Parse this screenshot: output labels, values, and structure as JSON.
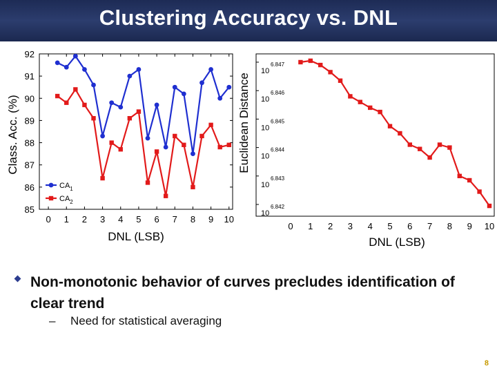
{
  "slide": {
    "title": "Clustering Accuracy vs. DNL",
    "bullet": "Non-monotonic behavior of curves precludes identification of clear trend",
    "sub_dash": "–",
    "sub_bullet": "Need for statistical averaging",
    "page_number": "8"
  },
  "chart_data": [
    {
      "type": "line",
      "xlabel": "DNL (LSB)",
      "ylabel": "Class. Acc. (%)",
      "xlim": [
        -0.5,
        10.2
      ],
      "ylim": [
        85,
        92
      ],
      "xticks": [
        0,
        1,
        2,
        3,
        4,
        5,
        6,
        7,
        8,
        9,
        10
      ],
      "yticks": [
        85,
        86,
        87,
        88,
        89,
        90,
        91,
        92
      ],
      "legend_position": "bottom-left",
      "grid": false,
      "x": [
        0.5,
        1,
        1.5,
        2,
        2.5,
        3,
        3.5,
        4,
        4.5,
        5,
        5.5,
        6,
        6.5,
        7,
        7.5,
        8,
        8.5,
        9,
        9.5,
        10
      ],
      "series": [
        {
          "name": "CA",
          "name_sub": "1",
          "color": "#1f2fd0",
          "marker": "circle",
          "values": [
            91.6,
            91.4,
            91.9,
            91.3,
            90.6,
            88.3,
            89.8,
            89.6,
            91.0,
            91.3,
            88.2,
            89.7,
            87.8,
            90.5,
            90.2,
            87.5,
            90.7,
            91.3,
            90.0,
            90.5
          ]
        },
        {
          "name": "CA",
          "name_sub": "2",
          "color": "#e21a1a",
          "marker": "square",
          "values": [
            90.1,
            89.8,
            90.4,
            89.7,
            89.1,
            86.4,
            88.0,
            87.7,
            89.1,
            89.4,
            86.2,
            87.6,
            85.6,
            88.3,
            87.9,
            86.0,
            88.3,
            88.8,
            87.8,
            87.9
          ]
        }
      ]
    },
    {
      "type": "line",
      "xlabel": "DNL (LSB)",
      "ylabel": "Euclidean Distance",
      "yscale": "log",
      "xlim": [
        0,
        10
      ],
      "ylim_exponent": [
        6.842,
        6.847
      ],
      "xticks": [
        0,
        1,
        2,
        3,
        4,
        5,
        6,
        7,
        8,
        9,
        10
      ],
      "ytick_base": "10",
      "ytick_exponents": [
        "6.847",
        "6.846",
        "6.845",
        "6.844",
        "6.843",
        "6.842"
      ],
      "grid": false,
      "x": [
        0.5,
        1,
        1.5,
        2,
        2.5,
        3,
        3.5,
        4,
        4.5,
        5,
        5.5,
        6,
        6.5,
        7,
        7.5,
        8,
        8.5,
        9,
        9.5,
        10
      ],
      "series": [
        {
          "color": "#e21a1a",
          "marker": "square",
          "values_exponent": [
            6.847,
            6.84705,
            6.8469,
            6.84665,
            6.84635,
            6.8458,
            6.8456,
            6.8454,
            6.84525,
            6.84475,
            6.8445,
            6.8441,
            6.84395,
            6.84365,
            6.8441,
            6.844,
            6.843,
            6.84285,
            6.84245,
            6.84195
          ]
        }
      ]
    }
  ]
}
